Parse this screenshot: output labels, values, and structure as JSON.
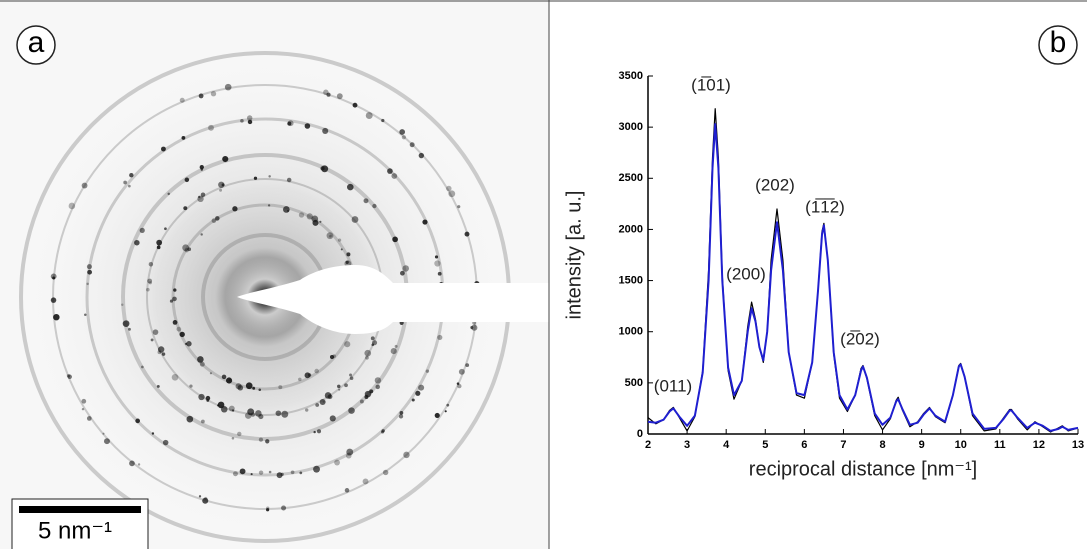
{
  "panels": {
    "a": {
      "label": "a",
      "scale_bar": "5 nm⁻¹"
    },
    "b": {
      "label": "b"
    }
  },
  "chart_data": {
    "type": "line",
    "y_label": "intensity [a. u.]",
    "x_label": "reciprocal distance [nm⁻¹]",
    "annotations": [
      "(011)",
      "(1̅01)",
      "(200)",
      "(202)",
      "(1̅1̅2)",
      "(2̅02)"
    ],
    "xlim": [
      2,
      13
    ],
    "xticks": [
      2,
      3,
      4,
      5,
      6,
      7,
      8,
      9,
      10,
      11,
      12,
      13
    ],
    "ylim": [
      0,
      3500
    ],
    "yticks": [
      0,
      500,
      1000,
      1500,
      2000,
      2500,
      3000,
      3500
    ],
    "x": [
      2.0,
      2.2,
      2.4,
      2.55,
      2.65,
      2.8,
      3.0,
      3.2,
      3.4,
      3.55,
      3.65,
      3.72,
      3.8,
      3.9,
      4.05,
      4.2,
      4.4,
      4.55,
      4.65,
      4.75,
      4.85,
      4.95,
      5.05,
      5.15,
      5.3,
      5.45,
      5.6,
      5.8,
      6.0,
      6.2,
      6.35,
      6.45,
      6.5,
      6.6,
      6.75,
      6.9,
      7.1,
      7.3,
      7.45,
      7.5,
      7.6,
      7.8,
      8.0,
      8.2,
      8.35,
      8.4,
      8.5,
      8.7,
      8.9,
      9.05,
      9.2,
      9.35,
      9.6,
      9.8,
      9.95,
      10.0,
      10.1,
      10.3,
      10.6,
      10.9,
      11.1,
      11.25,
      11.3,
      11.45,
      11.7,
      11.9,
      12.1,
      12.3,
      12.5,
      12.6,
      12.75,
      13.0
    ],
    "series": [
      {
        "color": "#000000",
        "values": [
          160,
          100,
          140,
          230,
          260,
          160,
          30,
          170,
          620,
          1600,
          2700,
          3180,
          2700,
          1550,
          620,
          340,
          520,
          1050,
          1290,
          1120,
          850,
          700,
          1000,
          1700,
          2200,
          1700,
          800,
          380,
          350,
          700,
          1400,
          1980,
          2060,
          1700,
          780,
          350,
          220,
          380,
          640,
          670,
          540,
          180,
          40,
          150,
          330,
          360,
          240,
          70,
          120,
          200,
          260,
          170,
          110,
          380,
          670,
          690,
          560,
          180,
          30,
          50,
          160,
          240,
          240,
          150,
          40,
          120,
          70,
          20,
          60,
          80,
          30,
          60
        ]
      },
      {
        "color": "#1f1fd0",
        "values": [
          120,
          110,
          140,
          220,
          250,
          170,
          80,
          180,
          600,
          1500,
          2600,
          3030,
          2600,
          1500,
          650,
          380,
          520,
          1000,
          1230,
          1100,
          850,
          720,
          1000,
          1600,
          2070,
          1600,
          800,
          400,
          380,
          700,
          1400,
          1950,
          2040,
          1700,
          800,
          380,
          240,
          380,
          620,
          660,
          550,
          200,
          90,
          160,
          320,
          340,
          250,
          90,
          110,
          190,
          250,
          180,
          120,
          380,
          660,
          680,
          560,
          200,
          50,
          60,
          150,
          230,
          230,
          160,
          60,
          110,
          80,
          30,
          50,
          70,
          40,
          60
        ]
      }
    ]
  }
}
